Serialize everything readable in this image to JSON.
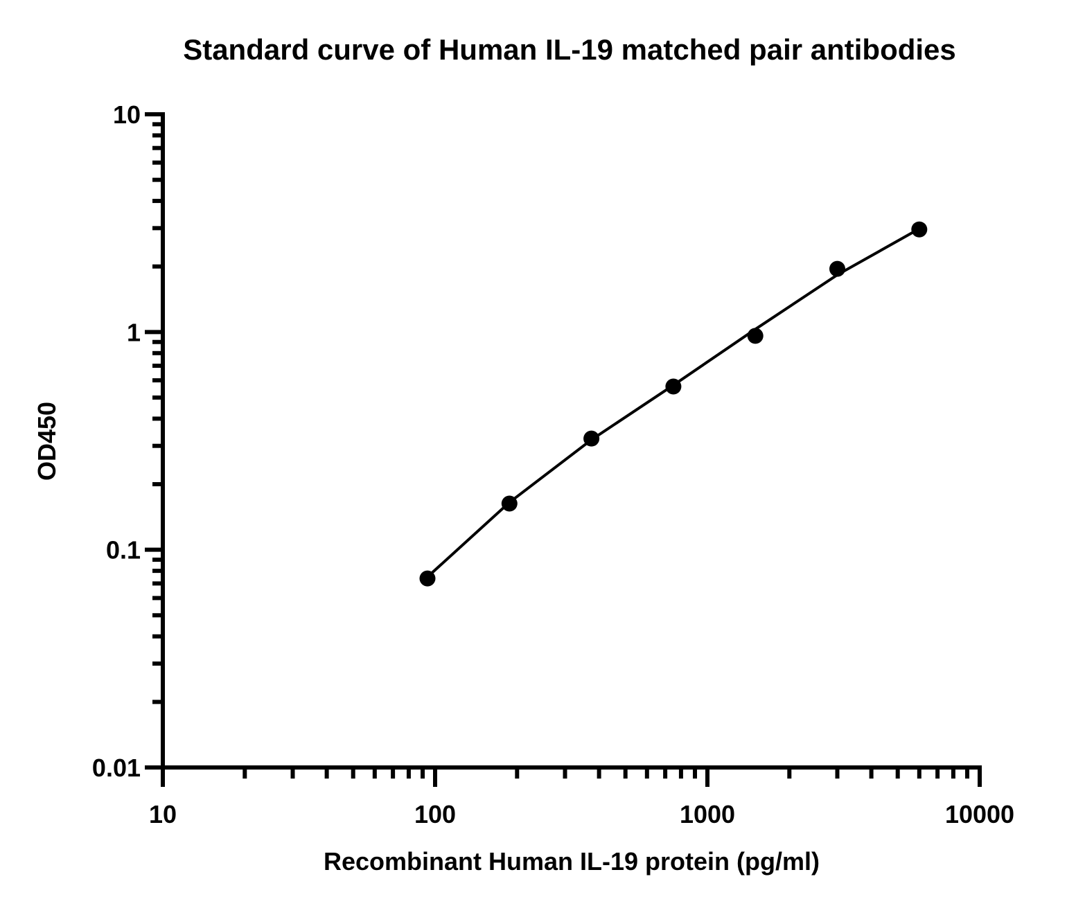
{
  "chart_data": {
    "type": "scatter",
    "title": "Standard curve of Human IL-19 matched pair antibodies",
    "x_label": "Recombinant Human IL-19 protein (pg/ml)",
    "y_label": "OD450",
    "x": [
      93.75,
      187.5,
      375,
      750,
      1500,
      3000,
      6000
    ],
    "values": [
      0.0738,
      0.163,
      0.324,
      0.562,
      0.96,
      1.95,
      2.96
    ],
    "color": "#000000",
    "fit": {
      "x": [
        93.75,
        187.5,
        375,
        750,
        1500,
        3000,
        6000
      ],
      "values": [
        0.075,
        0.165,
        0.32,
        0.57,
        1.03,
        1.83,
        2.98
      ]
    },
    "xlog": true,
    "ylog": true,
    "xlim": [
      10,
      10000
    ],
    "ylim": [
      0.01,
      10
    ],
    "xticks": [
      10,
      100,
      1000,
      10000
    ],
    "yticks": [
      0.01,
      0.1,
      1,
      10
    ],
    "xminor": [
      20,
      30,
      40,
      50,
      60,
      70,
      80,
      90,
      200,
      300,
      400,
      500,
      600,
      700,
      800,
      900,
      2000,
      3000,
      4000,
      5000,
      6000,
      7000,
      8000,
      9000
    ],
    "yminor": [
      0.02,
      0.03,
      0.04,
      0.05,
      0.06,
      0.07,
      0.08,
      0.09,
      0.2,
      0.3,
      0.4,
      0.5,
      0.6,
      0.7,
      0.8,
      0.9,
      2,
      3,
      4,
      5,
      6,
      7,
      8,
      9
    ]
  }
}
